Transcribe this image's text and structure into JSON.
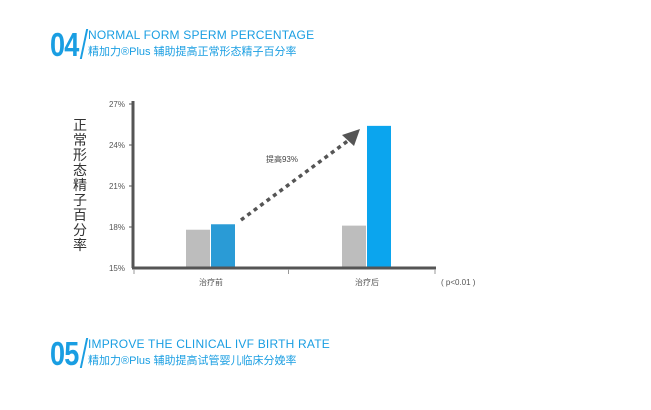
{
  "section04": {
    "number": "04",
    "title_en": "NORMAL FORM SPERM PERCENTAGE",
    "title_cn": "精加力®Plus 辅助提高正常形态精子百分率"
  },
  "section05": {
    "number": "05",
    "title_en": "IMPROVE THE CLINICAL IVF BIRTH RATE",
    "title_cn": "精加力®Plus 辅助提高试管婴儿临床分娩率"
  },
  "colors": {
    "accent": "#1a9ee2",
    "bar_gray": "#bdbdbd",
    "bar_blue_before": "#2a9bd6",
    "bar_blue_after": "#0ba5ee",
    "arrow": "#555555",
    "axis": "#555555"
  },
  "chart_data": {
    "type": "bar",
    "ylabel": "正常形态精子百分率",
    "categories": [
      "治疗前",
      "治疗后"
    ],
    "series": [
      {
        "values": [
          17.8,
          18.1
        ]
      },
      {
        "values": [
          18.2,
          25.4
        ]
      }
    ],
    "ylim": [
      15,
      27
    ],
    "yticks": [
      "15%",
      "18%",
      "21%",
      "24%",
      "27%"
    ],
    "ytick_values": [
      15,
      18,
      21,
      24,
      27
    ],
    "annotation": "提高93%",
    "note": "( p<0.01 )",
    "grid": false
  }
}
